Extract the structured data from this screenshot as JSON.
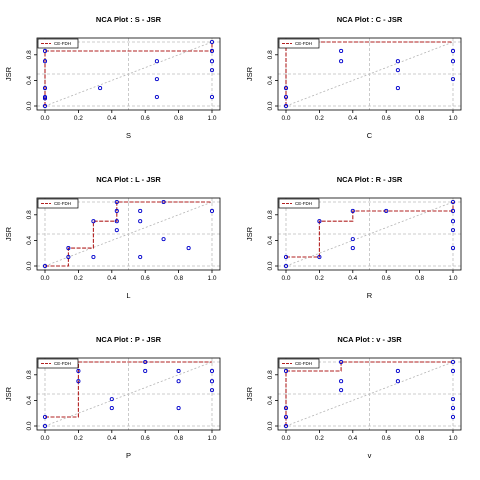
{
  "chart_data": [
    {
      "type": "scatter",
      "title": "NCA Plot : S - JSR",
      "xlabel": "S",
      "ylabel": "JSR",
      "xlim": [
        0,
        1
      ],
      "ylim": [
        0,
        1
      ],
      "x_ticks": [
        "0.0",
        "0.2",
        "0.4",
        "0.6",
        "0.8",
        "1.0"
      ],
      "y_ticks": [
        "0.0",
        "0.4",
        "0.8"
      ],
      "legend": "CE-FDH",
      "legend_position": "top-left",
      "grid": true,
      "points": [
        [
          0,
          0
        ],
        [
          0,
          0.12
        ],
        [
          0,
          0.14
        ],
        [
          0,
          0.28
        ],
        [
          0,
          0.7
        ],
        [
          0,
          0.86
        ],
        [
          0.33,
          0.28
        ],
        [
          0.67,
          0.14
        ],
        [
          0.67,
          0.42
        ],
        [
          0.67,
          0.7
        ],
        [
          1,
          0.14
        ],
        [
          1,
          0.56
        ],
        [
          1,
          0.7
        ],
        [
          1,
          0.86
        ],
        [
          1,
          1
        ]
      ],
      "ceiling": [
        [
          0,
          0
        ],
        [
          0,
          0.86
        ],
        [
          1,
          0.86
        ],
        [
          1,
          1
        ]
      ]
    },
    {
      "type": "scatter",
      "title": "NCA Plot : C - JSR",
      "xlabel": "C",
      "ylabel": "JSR",
      "xlim": [
        0,
        1
      ],
      "ylim": [
        0,
        1
      ],
      "x_ticks": [
        "0.0",
        "0.2",
        "0.4",
        "0.6",
        "0.8",
        "1.0"
      ],
      "y_ticks": [
        "0.0",
        "0.4",
        "0.8"
      ],
      "legend": "CE-FDH",
      "legend_position": "top-left",
      "grid": true,
      "points": [
        [
          0,
          0
        ],
        [
          0,
          0.14
        ],
        [
          0,
          0.28
        ],
        [
          0,
          1
        ],
        [
          0.33,
          0.7
        ],
        [
          0.33,
          0.86
        ],
        [
          0.67,
          0.28
        ],
        [
          0.67,
          0.56
        ],
        [
          0.67,
          0.7
        ],
        [
          1,
          0.42
        ],
        [
          1,
          0.7
        ],
        [
          1,
          0.86
        ]
      ],
      "ceiling": [
        [
          0,
          0
        ],
        [
          0,
          1
        ],
        [
          1,
          1
        ]
      ]
    },
    {
      "type": "scatter",
      "title": "NCA Plot : L - JSR",
      "xlabel": "L",
      "ylabel": "JSR",
      "xlim": [
        0,
        1
      ],
      "ylim": [
        0,
        1
      ],
      "x_ticks": [
        "0.0",
        "0.2",
        "0.4",
        "0.6",
        "0.8",
        "1.0"
      ],
      "y_ticks": [
        "0.0",
        "0.4",
        "0.8"
      ],
      "legend": "CE-FDH",
      "legend_position": "top-left",
      "grid": true,
      "points": [
        [
          0,
          0
        ],
        [
          0.14,
          0.14
        ],
        [
          0.14,
          0.28
        ],
        [
          0.29,
          0.14
        ],
        [
          0.29,
          0.7
        ],
        [
          0.43,
          0.56
        ],
        [
          0.43,
          0.7
        ],
        [
          0.43,
          0.86
        ],
        [
          0.43,
          1
        ],
        [
          0.57,
          0.14
        ],
        [
          0.57,
          0.7
        ],
        [
          0.57,
          0.86
        ],
        [
          0.71,
          0.42
        ],
        [
          0.71,
          1
        ],
        [
          0.86,
          0.28
        ],
        [
          1,
          0.86
        ]
      ],
      "ceiling": [
        [
          0,
          0
        ],
        [
          0.14,
          0
        ],
        [
          0.14,
          0.28
        ],
        [
          0.29,
          0.28
        ],
        [
          0.29,
          0.7
        ],
        [
          0.43,
          0.7
        ],
        [
          0.43,
          1
        ],
        [
          1,
          1
        ]
      ]
    },
    {
      "type": "scatter",
      "title": "NCA Plot : R - JSR",
      "xlabel": "R",
      "ylabel": "JSR",
      "xlim": [
        0,
        1
      ],
      "ylim": [
        0,
        1
      ],
      "x_ticks": [
        "0.0",
        "0.2",
        "0.4",
        "0.6",
        "0.8",
        "1.0"
      ],
      "y_ticks": [
        "0.0",
        "0.4",
        "0.8"
      ],
      "legend": "CE-FDH",
      "legend_position": "top-left",
      "grid": true,
      "points": [
        [
          0,
          0
        ],
        [
          0,
          0.14
        ],
        [
          0.2,
          0.14
        ],
        [
          0.2,
          0.7
        ],
        [
          0.4,
          0.28
        ],
        [
          0.4,
          0.42
        ],
        [
          0.4,
          0.86
        ],
        [
          0.6,
          0.86
        ],
        [
          1,
          0.28
        ],
        [
          1,
          0.56
        ],
        [
          1,
          0.7
        ],
        [
          1,
          0.86
        ],
        [
          1,
          1
        ]
      ],
      "ceiling": [
        [
          0,
          0.14
        ],
        [
          0.2,
          0.14
        ],
        [
          0.2,
          0.7
        ],
        [
          0.4,
          0.7
        ],
        [
          0.4,
          0.86
        ],
        [
          1,
          0.86
        ],
        [
          1,
          1
        ]
      ]
    },
    {
      "type": "scatter",
      "title": "NCA Plot : P - JSR",
      "xlabel": "P",
      "ylabel": "JSR",
      "xlim": [
        0,
        1
      ],
      "ylim": [
        0,
        1
      ],
      "x_ticks": [
        "0.0",
        "0.2",
        "0.4",
        "0.6",
        "0.8",
        "1.0"
      ],
      "y_ticks": [
        "0.0",
        "0.4",
        "0.8"
      ],
      "legend": "CE-FDH",
      "legend_position": "top-left",
      "grid": true,
      "points": [
        [
          0,
          0
        ],
        [
          0,
          0.14
        ],
        [
          0.2,
          0.7
        ],
        [
          0.2,
          0.86
        ],
        [
          0.4,
          0.28
        ],
        [
          0.4,
          0.42
        ],
        [
          0.6,
          0.86
        ],
        [
          0.6,
          1
        ],
        [
          0.8,
          0.28
        ],
        [
          0.8,
          0.7
        ],
        [
          0.8,
          0.86
        ],
        [
          1,
          0.56
        ],
        [
          1,
          0.7
        ],
        [
          1,
          0.86
        ]
      ],
      "ceiling": [
        [
          0,
          0.14
        ],
        [
          0.2,
          0.14
        ],
        [
          0.2,
          1
        ],
        [
          1,
          1
        ]
      ]
    },
    {
      "type": "scatter",
      "title": "NCA Plot : v - JSR",
      "xlabel": "v",
      "ylabel": "JSR",
      "xlim": [
        0,
        1
      ],
      "ylim": [
        0,
        1
      ],
      "x_ticks": [
        "0.0",
        "0.2",
        "0.4",
        "0.6",
        "0.8",
        "1.0"
      ],
      "y_ticks": [
        "0.0",
        "0.4",
        "0.8"
      ],
      "legend": "CE-FDH",
      "legend_position": "top-left",
      "grid": true,
      "points": [
        [
          0,
          0
        ],
        [
          0,
          0.14
        ],
        [
          0,
          0.28
        ],
        [
          0,
          0.86
        ],
        [
          0.33,
          0.56
        ],
        [
          0.33,
          0.7
        ],
        [
          0.33,
          1
        ],
        [
          0.67,
          0.7
        ],
        [
          0.67,
          0.86
        ],
        [
          1,
          0.14
        ],
        [
          1,
          0.28
        ],
        [
          1,
          0.42
        ],
        [
          1,
          0.86
        ],
        [
          1,
          1
        ]
      ],
      "ceiling": [
        [
          0,
          0
        ],
        [
          0,
          0.86
        ],
        [
          0.33,
          0.86
        ],
        [
          0.33,
          1
        ],
        [
          1,
          1
        ]
      ]
    }
  ],
  "colors": {
    "point": "#0000cd",
    "ceiling": "#b22222",
    "grid": "#bebebe",
    "diagonal": "#b4b4b4",
    "axis": "#000000"
  }
}
